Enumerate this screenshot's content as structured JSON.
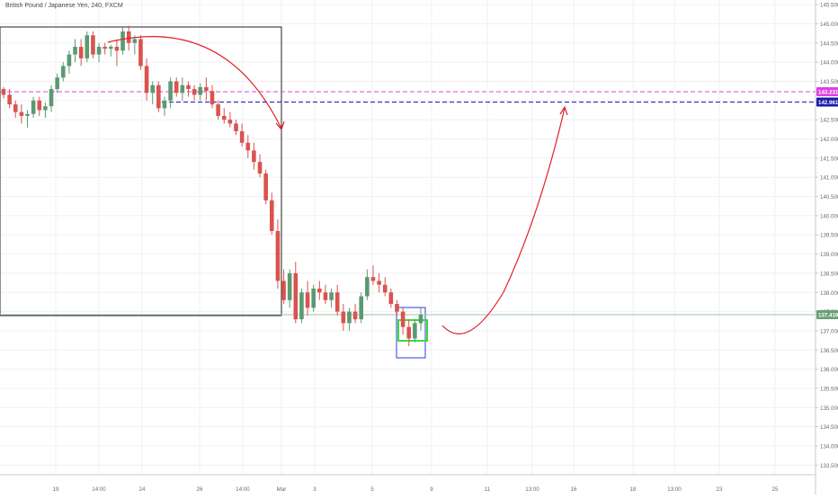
{
  "title": "British Pound / Japanese Yen, 240, FXCM",
  "colors": {
    "background": "#ffffff",
    "grid": "#eef0f3",
    "up_candle": "#5a9a72",
    "down_candle": "#d9534f",
    "axis_text": "#6b6b6b",
    "magenta_line": "#e040e0",
    "blue_line": "#1a1aa8",
    "current_price_badge": "#6a9f77",
    "red_arrow": "#e0202a",
    "blue_box": "#2a3fd8",
    "green_box": "#3cdc3c",
    "black_box": "#222222"
  },
  "price_axis": {
    "labels": [
      "145.500",
      "145.000",
      "144.500",
      "144.000",
      "143.500",
      "143.000",
      "142.500",
      "142.000",
      "141.500",
      "141.000",
      "140.500",
      "140.000",
      "139.500",
      "139.000",
      "138.500",
      "138.000",
      "137.500",
      "137.000",
      "136.500",
      "136.000",
      "135.500",
      "135.000",
      "134.500",
      "134.000",
      "133.500"
    ],
    "ylim": [
      133.25,
      145.62
    ]
  },
  "time_axis": {
    "labels": [
      "19",
      "14:00",
      "24",
      "26",
      "14:00",
      "Mar",
      "3",
      "5",
      "9",
      "11",
      "13:00",
      "16",
      "18",
      "13:00",
      "23",
      "25"
    ]
  },
  "price_badges": {
    "magenta": "143.231",
    "blue": "142.961",
    "current": "137.419"
  },
  "chart_data": {
    "type": "candlestick",
    "title": "British Pound / Japanese Yen, 240, FXCM",
    "ylim": [
      133.25,
      145.62
    ],
    "horizontal_levels": [
      {
        "value": 143.231,
        "style": "dashed",
        "color": "#e040e0"
      },
      {
        "value": 142.961,
        "style": "dashed",
        "color": "#1a1aa8"
      },
      {
        "value": 137.419,
        "style": "solid",
        "color": "#9fc4aa"
      }
    ],
    "candles": [
      {
        "o": 143.3,
        "h": 143.35,
        "l": 143.05,
        "c": 143.15
      },
      {
        "o": 143.15,
        "h": 143.3,
        "l": 142.8,
        "c": 142.9
      },
      {
        "o": 142.9,
        "h": 143.0,
        "l": 142.55,
        "c": 142.7
      },
      {
        "o": 142.7,
        "h": 142.9,
        "l": 142.4,
        "c": 142.6
      },
      {
        "o": 142.6,
        "h": 142.75,
        "l": 142.3,
        "c": 142.65
      },
      {
        "o": 142.65,
        "h": 143.1,
        "l": 142.55,
        "c": 143.0
      },
      {
        "o": 143.0,
        "h": 143.1,
        "l": 142.6,
        "c": 142.75
      },
      {
        "o": 142.75,
        "h": 142.95,
        "l": 142.55,
        "c": 142.85
      },
      {
        "o": 142.85,
        "h": 143.4,
        "l": 142.7,
        "c": 143.3
      },
      {
        "o": 143.3,
        "h": 143.7,
        "l": 143.2,
        "c": 143.6
      },
      {
        "o": 143.6,
        "h": 144.0,
        "l": 143.5,
        "c": 143.9
      },
      {
        "o": 143.9,
        "h": 144.3,
        "l": 143.7,
        "c": 144.2
      },
      {
        "o": 144.2,
        "h": 144.6,
        "l": 144.0,
        "c": 144.4
      },
      {
        "o": 144.4,
        "h": 144.6,
        "l": 143.9,
        "c": 144.1
      },
      {
        "o": 144.1,
        "h": 144.8,
        "l": 144.0,
        "c": 144.7
      },
      {
        "o": 144.7,
        "h": 144.8,
        "l": 144.1,
        "c": 144.2
      },
      {
        "o": 144.2,
        "h": 144.5,
        "l": 144.0,
        "c": 144.4
      },
      {
        "o": 144.4,
        "h": 144.5,
        "l": 144.2,
        "c": 144.35
      },
      {
        "o": 144.35,
        "h": 144.45,
        "l": 144.15,
        "c": 144.4
      },
      {
        "o": 144.4,
        "h": 144.6,
        "l": 143.9,
        "c": 144.3
      },
      {
        "o": 144.3,
        "h": 144.9,
        "l": 144.2,
        "c": 144.8
      },
      {
        "o": 144.8,
        "h": 144.95,
        "l": 144.3,
        "c": 144.5
      },
      {
        "o": 144.5,
        "h": 144.7,
        "l": 144.2,
        "c": 144.6
      },
      {
        "o": 144.6,
        "h": 144.7,
        "l": 143.8,
        "c": 143.9
      },
      {
        "o": 143.9,
        "h": 144.1,
        "l": 143.0,
        "c": 143.2
      },
      {
        "o": 143.2,
        "h": 143.5,
        "l": 142.9,
        "c": 143.4
      },
      {
        "o": 143.4,
        "h": 143.5,
        "l": 142.7,
        "c": 142.8
      },
      {
        "o": 142.8,
        "h": 143.1,
        "l": 142.6,
        "c": 143.0
      },
      {
        "o": 143.0,
        "h": 143.6,
        "l": 142.8,
        "c": 143.5
      },
      {
        "o": 143.5,
        "h": 143.6,
        "l": 143.1,
        "c": 143.2
      },
      {
        "o": 143.2,
        "h": 143.6,
        "l": 143.0,
        "c": 143.4
      },
      {
        "o": 143.4,
        "h": 143.5,
        "l": 143.1,
        "c": 143.3
      },
      {
        "o": 143.3,
        "h": 143.4,
        "l": 143.0,
        "c": 143.15
      },
      {
        "o": 143.15,
        "h": 143.45,
        "l": 143.0,
        "c": 143.35
      },
      {
        "o": 143.35,
        "h": 143.6,
        "l": 143.0,
        "c": 143.25
      },
      {
        "o": 143.25,
        "h": 143.4,
        "l": 142.8,
        "c": 142.9
      },
      {
        "o": 142.9,
        "h": 143.0,
        "l": 142.5,
        "c": 142.6
      },
      {
        "o": 142.6,
        "h": 142.8,
        "l": 142.4,
        "c": 142.5
      },
      {
        "o": 142.5,
        "h": 142.7,
        "l": 142.3,
        "c": 142.4
      },
      {
        "o": 142.4,
        "h": 142.5,
        "l": 142.1,
        "c": 142.2
      },
      {
        "o": 142.2,
        "h": 142.4,
        "l": 141.8,
        "c": 141.9
      },
      {
        "o": 141.9,
        "h": 142.1,
        "l": 141.5,
        "c": 141.7
      },
      {
        "o": 141.7,
        "h": 141.9,
        "l": 141.2,
        "c": 141.4
      },
      {
        "o": 141.4,
        "h": 141.6,
        "l": 141.0,
        "c": 141.1
      },
      {
        "o": 141.1,
        "h": 141.2,
        "l": 140.3,
        "c": 140.4
      },
      {
        "o": 140.4,
        "h": 140.6,
        "l": 139.5,
        "c": 139.6
      },
      {
        "o": 139.6,
        "h": 139.9,
        "l": 138.1,
        "c": 138.3
      },
      {
        "o": 138.3,
        "h": 138.6,
        "l": 137.7,
        "c": 137.8
      },
      {
        "o": 137.8,
        "h": 138.6,
        "l": 137.6,
        "c": 138.5
      },
      {
        "o": 138.5,
        "h": 138.8,
        "l": 137.2,
        "c": 137.3
      },
      {
        "o": 137.3,
        "h": 138.1,
        "l": 137.2,
        "c": 138.0
      },
      {
        "o": 138.0,
        "h": 138.3,
        "l": 137.4,
        "c": 137.6
      },
      {
        "o": 137.6,
        "h": 138.2,
        "l": 137.5,
        "c": 138.1
      },
      {
        "o": 138.1,
        "h": 138.3,
        "l": 137.8,
        "c": 138.0
      },
      {
        "o": 138.0,
        "h": 138.2,
        "l": 137.7,
        "c": 137.8
      },
      {
        "o": 137.8,
        "h": 138.1,
        "l": 137.6,
        "c": 138.0
      },
      {
        "o": 138.0,
        "h": 138.2,
        "l": 137.4,
        "c": 137.5
      },
      {
        "o": 137.5,
        "h": 137.7,
        "l": 137.0,
        "c": 137.2
      },
      {
        "o": 137.2,
        "h": 137.6,
        "l": 137.0,
        "c": 137.5
      },
      {
        "o": 137.5,
        "h": 137.7,
        "l": 137.2,
        "c": 137.3
      },
      {
        "o": 137.3,
        "h": 138.0,
        "l": 137.2,
        "c": 137.9
      },
      {
        "o": 137.9,
        "h": 138.6,
        "l": 137.8,
        "c": 138.4
      },
      {
        "o": 138.4,
        "h": 138.7,
        "l": 138.2,
        "c": 138.3
      },
      {
        "o": 138.3,
        "h": 138.5,
        "l": 138.0,
        "c": 138.2
      },
      {
        "o": 138.2,
        "h": 138.4,
        "l": 137.9,
        "c": 138.0
      },
      {
        "o": 138.0,
        "h": 138.1,
        "l": 137.6,
        "c": 137.7
      },
      {
        "o": 137.7,
        "h": 137.8,
        "l": 137.4,
        "c": 137.5
      },
      {
        "o": 137.5,
        "h": 137.6,
        "l": 136.9,
        "c": 137.1
      },
      {
        "o": 137.1,
        "h": 137.3,
        "l": 136.6,
        "c": 136.8
      },
      {
        "o": 136.8,
        "h": 137.3,
        "l": 136.7,
        "c": 137.2
      },
      {
        "o": 137.2,
        "h": 137.6,
        "l": 137.0,
        "c": 137.42
      }
    ]
  }
}
